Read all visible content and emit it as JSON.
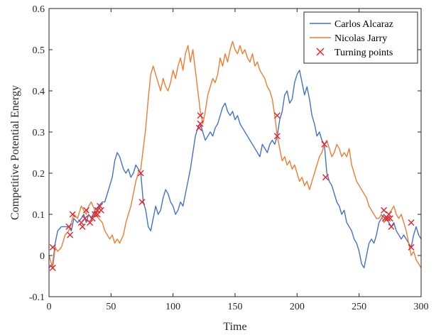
{
  "chart_data": {
    "type": "line",
    "xlabel": "Time",
    "ylabel": "Competitive Potential Energy",
    "xlim": [
      0,
      300
    ],
    "ylim": [
      -0.1,
      0.6
    ],
    "x_ticks": [
      0,
      50,
      100,
      150,
      200,
      250,
      300
    ],
    "y_ticks": [
      -0.1,
      0,
      0.1,
      0.2,
      0.3,
      0.4,
      0.5,
      0.6
    ],
    "grid": false,
    "legend_position": "top-right",
    "series": [
      {
        "name": "Carlos Alcaraz",
        "color": "#4472C4",
        "points": [
          [
            0,
            -0.03
          ],
          [
            3,
            -0.02
          ],
          [
            5,
            0.03
          ],
          [
            7,
            0.06
          ],
          [
            10,
            0.07
          ],
          [
            13,
            0.07
          ],
          [
            16,
            0.07
          ],
          [
            18,
            0.06
          ],
          [
            20,
            0.09
          ],
          [
            23,
            0.08
          ],
          [
            26,
            0.09
          ],
          [
            28,
            0.1
          ],
          [
            30,
            0.08
          ],
          [
            32,
            0.1
          ],
          [
            34,
            0.09
          ],
          [
            37,
            0.11
          ],
          [
            40,
            0.12
          ],
          [
            43,
            0.13
          ],
          [
            45,
            0.13
          ],
          [
            47,
            0.15
          ],
          [
            49,
            0.17
          ],
          [
            51,
            0.19
          ],
          [
            53,
            0.23
          ],
          [
            55,
            0.25
          ],
          [
            57,
            0.24
          ],
          [
            60,
            0.21
          ],
          [
            62,
            0.2
          ],
          [
            64,
            0.21
          ],
          [
            66,
            0.19
          ],
          [
            68,
            0.2
          ],
          [
            70,
            0.22
          ],
          [
            72,
            0.21
          ],
          [
            74,
            0.2
          ],
          [
            76,
            0.13
          ],
          [
            78,
            0.11
          ],
          [
            80,
            0.07
          ],
          [
            82,
            0.06
          ],
          [
            84,
            0.09
          ],
          [
            86,
            0.12
          ],
          [
            88,
            0.1
          ],
          [
            90,
            0.11
          ],
          [
            92,
            0.14
          ],
          [
            94,
            0.16
          ],
          [
            96,
            0.15
          ],
          [
            98,
            0.13
          ],
          [
            100,
            0.12
          ],
          [
            102,
            0.1
          ],
          [
            104,
            0.11
          ],
          [
            106,
            0.13
          ],
          [
            108,
            0.12
          ],
          [
            110,
            0.15
          ],
          [
            112,
            0.18
          ],
          [
            114,
            0.21
          ],
          [
            116,
            0.25
          ],
          [
            118,
            0.29
          ],
          [
            120,
            0.31
          ],
          [
            122,
            0.32
          ],
          [
            124,
            0.3
          ],
          [
            126,
            0.28
          ],
          [
            128,
            0.29
          ],
          [
            130,
            0.3
          ],
          [
            132,
            0.29
          ],
          [
            134,
            0.31
          ],
          [
            136,
            0.32
          ],
          [
            138,
            0.34
          ],
          [
            140,
            0.36
          ],
          [
            142,
            0.37
          ],
          [
            144,
            0.35
          ],
          [
            146,
            0.34
          ],
          [
            148,
            0.35
          ],
          [
            150,
            0.33
          ],
          [
            152,
            0.34
          ],
          [
            154,
            0.32
          ],
          [
            156,
            0.31
          ],
          [
            158,
            0.3
          ],
          [
            160,
            0.29
          ],
          [
            162,
            0.28
          ],
          [
            164,
            0.27
          ],
          [
            166,
            0.26
          ],
          [
            168,
            0.25
          ],
          [
            170,
            0.24
          ],
          [
            172,
            0.27
          ],
          [
            174,
            0.26
          ],
          [
            176,
            0.25
          ],
          [
            178,
            0.27
          ],
          [
            180,
            0.28
          ],
          [
            182,
            0.27
          ],
          [
            184,
            0.29
          ],
          [
            186,
            0.33
          ],
          [
            188,
            0.35
          ],
          [
            190,
            0.39
          ],
          [
            192,
            0.4
          ],
          [
            194,
            0.37
          ],
          [
            196,
            0.38
          ],
          [
            198,
            0.42
          ],
          [
            200,
            0.44
          ],
          [
            202,
            0.45
          ],
          [
            204,
            0.42
          ],
          [
            206,
            0.39
          ],
          [
            208,
            0.41
          ],
          [
            210,
            0.38
          ],
          [
            212,
            0.34
          ],
          [
            214,
            0.32
          ],
          [
            216,
            0.29
          ],
          [
            218,
            0.3
          ],
          [
            220,
            0.28
          ],
          [
            222,
            0.27
          ],
          [
            224,
            0.2
          ],
          [
            226,
            0.18
          ],
          [
            228,
            0.17
          ],
          [
            230,
            0.15
          ],
          [
            232,
            0.13
          ],
          [
            234,
            0.12
          ],
          [
            236,
            0.1
          ],
          [
            238,
            0.11
          ],
          [
            240,
            0.08
          ],
          [
            242,
            0.07
          ],
          [
            244,
            0.06
          ],
          [
            246,
            0.04
          ],
          [
            248,
            0.03
          ],
          [
            250,
            0.01
          ],
          [
            252,
            -0.02
          ],
          [
            254,
            -0.03
          ],
          [
            256,
            0.0
          ],
          [
            258,
            0.03
          ],
          [
            260,
            0.04
          ],
          [
            262,
            0.03
          ],
          [
            264,
            0.05
          ],
          [
            266,
            0.08
          ],
          [
            268,
            0.09
          ],
          [
            270,
            0.1
          ],
          [
            272,
            0.09
          ],
          [
            274,
            0.08
          ],
          [
            276,
            0.07
          ],
          [
            278,
            0.08
          ],
          [
            280,
            0.06
          ],
          [
            282,
            0.05
          ],
          [
            284,
            0.04
          ],
          [
            286,
            0.05
          ],
          [
            288,
            0.04
          ],
          [
            290,
            0.03
          ],
          [
            292,
            0.02
          ],
          [
            294,
            0.05
          ],
          [
            296,
            0.07
          ],
          [
            298,
            0.05
          ],
          [
            300,
            0.04
          ]
        ]
      },
      {
        "name": "Nicolas Jarry",
        "color": "#ED7D31",
        "points": [
          [
            0,
            0.0
          ],
          [
            3,
            -0.03
          ],
          [
            5,
            0.02
          ],
          [
            7,
            0.01
          ],
          [
            10,
            0.02
          ],
          [
            13,
            0.05
          ],
          [
            16,
            0.06
          ],
          [
            18,
            0.08
          ],
          [
            20,
            0.1
          ],
          [
            23,
            0.09
          ],
          [
            26,
            0.12
          ],
          [
            28,
            0.11
          ],
          [
            30,
            0.1
          ],
          [
            32,
            0.12
          ],
          [
            34,
            0.13
          ],
          [
            37,
            0.11
          ],
          [
            40,
            0.09
          ],
          [
            43,
            0.08
          ],
          [
            45,
            0.06
          ],
          [
            47,
            0.05
          ],
          [
            49,
            0.04
          ],
          [
            51,
            0.05
          ],
          [
            53,
            0.03
          ],
          [
            55,
            0.04
          ],
          [
            57,
            0.03
          ],
          [
            60,
            0.05
          ],
          [
            62,
            0.08
          ],
          [
            64,
            0.1
          ],
          [
            66,
            0.12
          ],
          [
            68,
            0.15
          ],
          [
            70,
            0.18
          ],
          [
            72,
            0.2
          ],
          [
            74,
            0.21
          ],
          [
            76,
            0.26
          ],
          [
            78,
            0.31
          ],
          [
            80,
            0.38
          ],
          [
            82,
            0.44
          ],
          [
            84,
            0.46
          ],
          [
            86,
            0.44
          ],
          [
            88,
            0.42
          ],
          [
            90,
            0.4
          ],
          [
            92,
            0.43
          ],
          [
            94,
            0.41
          ],
          [
            96,
            0.4
          ],
          [
            98,
            0.42
          ],
          [
            100,
            0.45
          ],
          [
            102,
            0.43
          ],
          [
            104,
            0.46
          ],
          [
            106,
            0.48
          ],
          [
            108,
            0.45
          ],
          [
            110,
            0.49
          ],
          [
            112,
            0.51
          ],
          [
            114,
            0.47
          ],
          [
            116,
            0.5
          ],
          [
            118,
            0.45
          ],
          [
            120,
            0.4
          ],
          [
            122,
            0.35
          ],
          [
            124,
            0.32
          ],
          [
            126,
            0.35
          ],
          [
            128,
            0.39
          ],
          [
            130,
            0.41
          ],
          [
            132,
            0.43
          ],
          [
            134,
            0.42
          ],
          [
            136,
            0.44
          ],
          [
            138,
            0.48
          ],
          [
            140,
            0.46
          ],
          [
            142,
            0.49
          ],
          [
            144,
            0.47
          ],
          [
            146,
            0.5
          ],
          [
            148,
            0.52
          ],
          [
            150,
            0.5
          ],
          [
            152,
            0.49
          ],
          [
            154,
            0.51
          ],
          [
            156,
            0.49
          ],
          [
            158,
            0.5
          ],
          [
            160,
            0.48
          ],
          [
            162,
            0.47
          ],
          [
            164,
            0.49
          ],
          [
            166,
            0.46
          ],
          [
            168,
            0.47
          ],
          [
            170,
            0.45
          ],
          [
            172,
            0.44
          ],
          [
            174,
            0.43
          ],
          [
            176,
            0.41
          ],
          [
            178,
            0.4
          ],
          [
            180,
            0.38
          ],
          [
            182,
            0.34
          ],
          [
            184,
            0.29
          ],
          [
            186,
            0.26
          ],
          [
            188,
            0.23
          ],
          [
            190,
            0.24
          ],
          [
            192,
            0.22
          ],
          [
            194,
            0.23
          ],
          [
            196,
            0.21
          ],
          [
            198,
            0.22
          ],
          [
            200,
            0.2
          ],
          [
            202,
            0.18
          ],
          [
            204,
            0.19
          ],
          [
            206,
            0.17
          ],
          [
            208,
            0.18
          ],
          [
            210,
            0.16
          ],
          [
            212,
            0.18
          ],
          [
            214,
            0.2
          ],
          [
            216,
            0.22
          ],
          [
            218,
            0.24
          ],
          [
            220,
            0.25
          ],
          [
            222,
            0.27
          ],
          [
            224,
            0.28
          ],
          [
            226,
            0.26
          ],
          [
            228,
            0.24
          ],
          [
            230,
            0.25
          ],
          [
            232,
            0.27
          ],
          [
            234,
            0.26
          ],
          [
            236,
            0.24
          ],
          [
            238,
            0.25
          ],
          [
            240,
            0.24
          ],
          [
            242,
            0.26
          ],
          [
            244,
            0.22
          ],
          [
            246,
            0.2
          ],
          [
            248,
            0.18
          ],
          [
            250,
            0.17
          ],
          [
            252,
            0.16
          ],
          [
            254,
            0.15
          ],
          [
            256,
            0.14
          ],
          [
            258,
            0.12
          ],
          [
            260,
            0.11
          ],
          [
            262,
            0.1
          ],
          [
            264,
            0.09
          ],
          [
            266,
            0.09
          ],
          [
            268,
            0.1
          ],
          [
            270,
            0.08
          ],
          [
            272,
            0.09
          ],
          [
            274,
            0.1
          ],
          [
            276,
            0.11
          ],
          [
            278,
            0.12
          ],
          [
            280,
            0.1
          ],
          [
            282,
            0.09
          ],
          [
            284,
            0.1
          ],
          [
            286,
            0.08
          ],
          [
            288,
            0.06
          ],
          [
            290,
            0.03
          ],
          [
            292,
            0.0
          ],
          [
            294,
            0.01
          ],
          [
            296,
            -0.01
          ],
          [
            298,
            -0.02
          ],
          [
            300,
            -0.03
          ]
        ]
      },
      {
        "name": "Turning points",
        "color": "#E8212B",
        "marker": "x",
        "points": [
          [
            3,
            -0.03
          ],
          [
            3,
            0.02
          ],
          [
            16,
            0.07
          ],
          [
            17,
            0.05
          ],
          [
            19,
            0.1
          ],
          [
            26,
            0.08
          ],
          [
            27,
            0.07
          ],
          [
            29,
            0.09
          ],
          [
            30,
            0.11
          ],
          [
            33,
            0.08
          ],
          [
            35,
            0.09
          ],
          [
            37,
            0.1
          ],
          [
            39,
            0.11
          ],
          [
            39,
            0.1
          ],
          [
            41,
            0.12
          ],
          [
            42,
            0.11
          ],
          [
            74,
            0.2
          ],
          [
            75,
            0.13
          ],
          [
            122,
            0.34
          ],
          [
            121,
            0.31
          ],
          [
            122,
            0.32
          ],
          [
            184,
            0.34
          ],
          [
            184,
            0.29
          ],
          [
            222,
            0.27
          ],
          [
            223,
            0.19
          ],
          [
            270,
            0.11
          ],
          [
            271,
            0.09
          ],
          [
            273,
            0.09
          ],
          [
            274,
            0.1
          ],
          [
            275,
            0.09
          ],
          [
            276,
            0.07
          ],
          [
            292,
            0.08
          ],
          [
            292,
            0.02
          ]
        ]
      }
    ]
  }
}
